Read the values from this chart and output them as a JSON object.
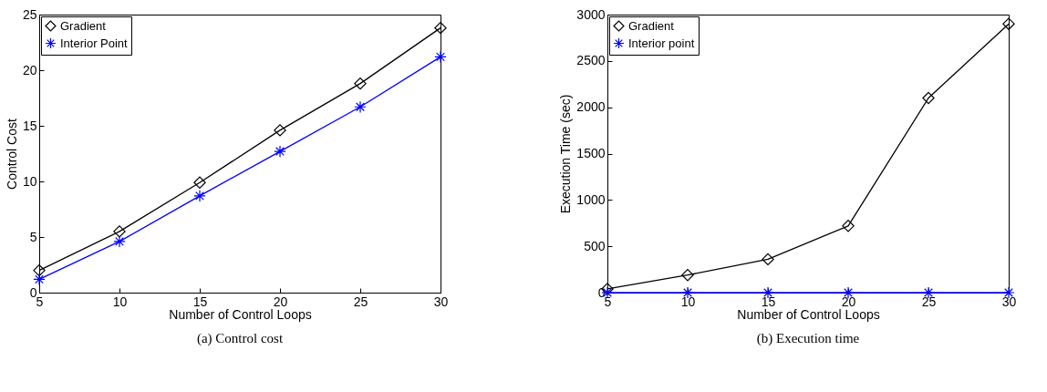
{
  "chart_data": [
    {
      "type": "line",
      "title": "(a) Control cost",
      "xlabel": "Number of Control Loops",
      "ylabel": "Control Cost",
      "x": [
        5,
        10,
        15,
        20,
        25,
        30
      ],
      "xlim": [
        5,
        30
      ],
      "xticks": [
        5,
        10,
        15,
        20,
        25,
        30
      ],
      "ylim": [
        0,
        25
      ],
      "yticks": [
        0,
        5,
        10,
        15,
        20,
        25
      ],
      "legend": "top left",
      "series": [
        {
          "name": "Gradient",
          "color": "#000000",
          "marker": "diamond",
          "values": [
            2.0,
            5.5,
            9.9,
            14.6,
            18.8,
            23.8
          ]
        },
        {
          "name": "Interior Point",
          "color": "#0000ff",
          "marker": "cross",
          "values": [
            1.2,
            4.6,
            8.7,
            12.7,
            16.7,
            21.2
          ]
        }
      ]
    },
    {
      "type": "line",
      "title": "(b) Execution time",
      "xlabel": "Number of Control Loops",
      "ylabel": "Execution Time (sec)",
      "x": [
        5,
        10,
        15,
        20,
        25,
        30
      ],
      "xlim": [
        5,
        30
      ],
      "xticks": [
        5,
        10,
        15,
        20,
        25,
        30
      ],
      "ylim": [
        0,
        3000
      ],
      "yticks": [
        0,
        500,
        1000,
        1500,
        2000,
        2500,
        3000
      ],
      "legend": "top left",
      "series": [
        {
          "name": "Gradient",
          "color": "#000000",
          "marker": "diamond",
          "values": [
            40,
            190,
            360,
            720,
            2100,
            2900
          ]
        },
        {
          "name": "Interior point",
          "color": "#0000ff",
          "marker": "cross",
          "values": [
            0,
            0,
            0,
            0,
            0,
            0
          ]
        }
      ]
    }
  ]
}
